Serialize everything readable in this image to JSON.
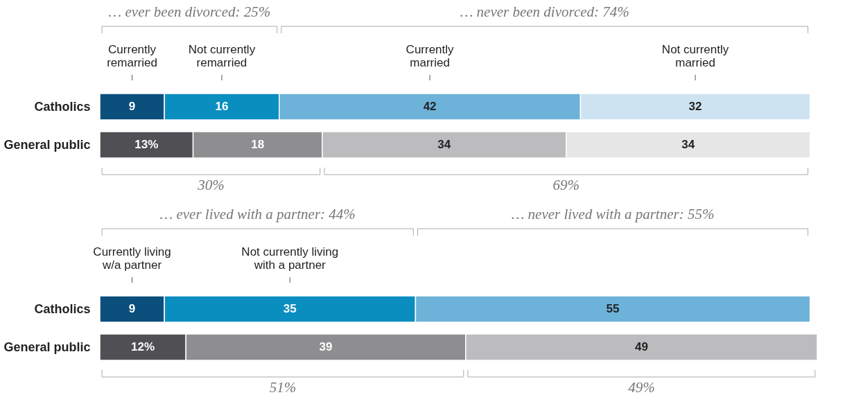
{
  "chart_data": [
    {
      "type": "bar",
      "orientation": "horizontal",
      "stacked": true,
      "categories": [
        "Catholics",
        "General public"
      ],
      "xlim": [
        0,
        100
      ],
      "tick_labels": "y",
      "legend": "top",
      "annotations": [
        "… ever been divorced: 25%",
        "… never been divorced: 74%",
        "30%",
        "69%"
      ],
      "series": [
        {
          "name": "Currently remarried",
          "colors": [
            "#0b4f7c",
            "#505054"
          ],
          "values": [
            9,
            13
          ],
          "value_labels": [
            "9",
            "13%"
          ]
        },
        {
          "name": "Not currently remarried",
          "colors": [
            "#0a8ec0",
            "#8e8e91"
          ],
          "values": [
            16,
            18
          ],
          "value_labels": [
            "16",
            "18"
          ]
        },
        {
          "name": "Currently married",
          "colors": [
            "#6db2d8",
            "#bcbcbe"
          ],
          "values": [
            42,
            34
          ],
          "value_labels": [
            "42",
            "34"
          ]
        },
        {
          "name": "Not currently married",
          "colors": [
            "#cde3f1",
            "#e6e6e7"
          ],
          "values": [
            32,
            34
          ],
          "value_labels": [
            "32",
            "34"
          ]
        }
      ]
    },
    {
      "type": "bar",
      "orientation": "horizontal",
      "stacked": true,
      "categories": [
        "Catholics",
        "General public"
      ],
      "xlim": [
        0,
        100
      ],
      "tick_labels": "y",
      "legend": "top",
      "annotations": [
        "… ever lived with a partner: 44%",
        "… never lived with a partner: 55%",
        "51%",
        "49%"
      ],
      "series": [
        {
          "name": "Currently living w/a partner",
          "colors": [
            "#0b4f7c",
            "#505054"
          ],
          "values": [
            9,
            12
          ],
          "value_labels": [
            "9",
            "12%"
          ]
        },
        {
          "name": "Not currently living with a partner",
          "colors": [
            "#0a8ec0",
            "#8e8e91"
          ],
          "values": [
            35,
            39
          ],
          "value_labels": [
            "35",
            "39"
          ]
        },
        {
          "colors": [
            "#6db2d8",
            "#bcbcbe"
          ],
          "values": [
            55,
            49
          ],
          "value_labels": [
            "55",
            "49"
          ]
        }
      ]
    }
  ]
}
